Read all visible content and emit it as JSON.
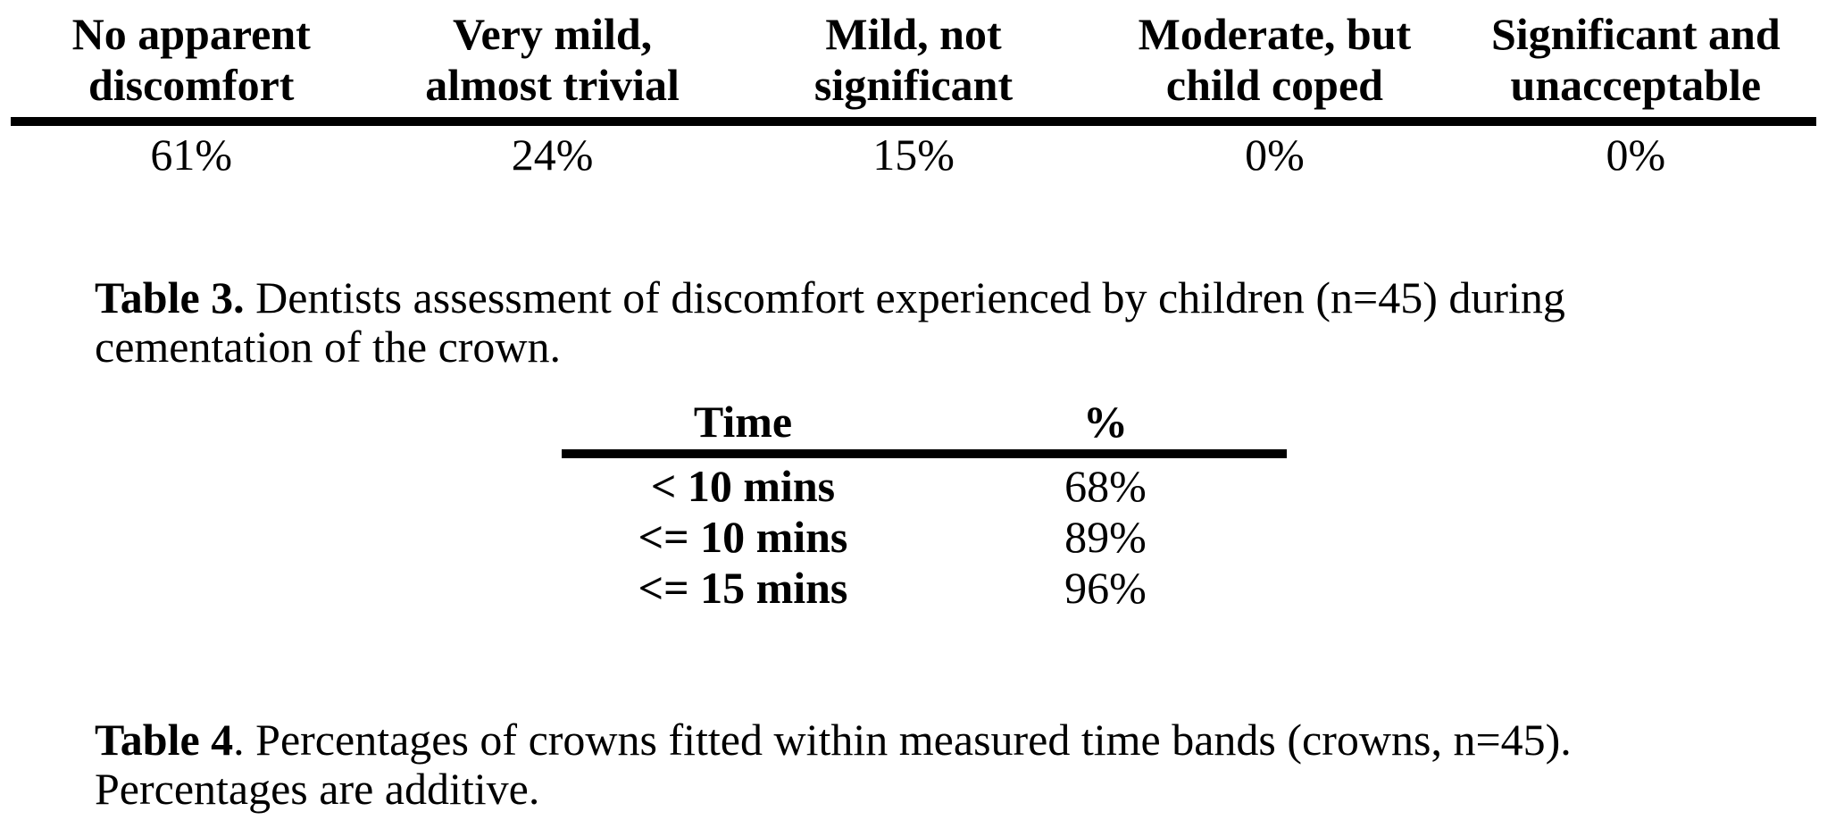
{
  "page": {
    "background": "#ffffff",
    "text_color": "#000000",
    "rule_color": "#000000"
  },
  "discomfort_table": {
    "columns": [
      {
        "header_line1": "No apparent",
        "header_line2": "discomfort",
        "value": "61%"
      },
      {
        "header_line1": "Very mild,",
        "header_line2": "almost trivial",
        "value": "24%"
      },
      {
        "header_line1": "Mild, not",
        "header_line2": "significant",
        "value": "15%"
      },
      {
        "header_line1": "Moderate, but",
        "header_line2": "child coped",
        "value": "0%"
      },
      {
        "header_line1": "Significant and",
        "header_line2": "unacceptable",
        "value": "0%"
      }
    ],
    "caption": {
      "label": "Table 3.",
      "line1": " Dentists assessment of discomfort experienced by children (n=45) during",
      "line2": "cementation of the crown."
    }
  },
  "time_table": {
    "headers": [
      "Time",
      "%"
    ],
    "rows": [
      {
        "time": "< 10 mins",
        "percent": "68%"
      },
      {
        "time": "<= 10 mins",
        "percent": "89%"
      },
      {
        "time": "<= 15 mins",
        "percent": "96%"
      }
    ],
    "caption": {
      "label": "Table 4",
      "line1": ". Percentages of crowns fitted within measured time bands (crowns, n=45).",
      "line2": "Percentages are additive."
    }
  }
}
